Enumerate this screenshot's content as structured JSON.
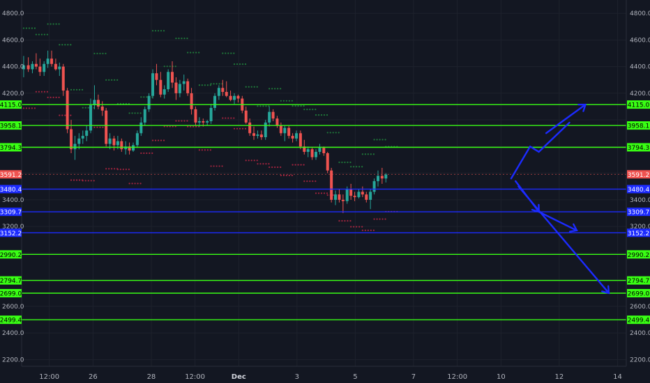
{
  "chart_data": {
    "type": "candlestick",
    "ylim": [
      2150,
      4900
    ],
    "y_ticks": [
      2200,
      2400,
      2600,
      2800,
      3000,
      3200,
      3400,
      3600,
      3800,
      4000,
      4200,
      4400,
      4600,
      4800
    ],
    "y_tick_labels": [
      "2200.0",
      "2400.0",
      "2600.0",
      "2800.0",
      "3000.0",
      "3200.0",
      "3400.0",
      "3600.0",
      "3800.0",
      "4000.0",
      "4200.0",
      "4400.0",
      "4600.0",
      "4800.0"
    ],
    "x_ticks": [
      {
        "label": "12:00",
        "x": 24.5
      },
      {
        "label": "26",
        "x": 26
      },
      {
        "label": "28",
        "x": 28
      },
      {
        "label": "12:00",
        "x": 29.5
      },
      {
        "label": "Dec",
        "x": 31,
        "bold": true
      },
      {
        "label": "3",
        "x": 33
      },
      {
        "label": "5",
        "x": 35
      },
      {
        "label": "7",
        "x": 37
      },
      {
        "label": "12:00",
        "x": 38.5
      },
      {
        "label": "10",
        "x": 40
      },
      {
        "label": "12",
        "x": 42
      },
      {
        "label": "14",
        "x": 44
      }
    ],
    "xlim": [
      23.55,
      44.3
    ],
    "last_price": {
      "value": 3591.2,
      "label": "3591.2",
      "color": "#ef5350"
    },
    "levels": [
      {
        "value": 4115.0,
        "label": "4115.0",
        "color": "#39ff14"
      },
      {
        "value": 3958.1,
        "label": "3958.1",
        "color": "#39ff14"
      },
      {
        "value": 3794.3,
        "label": "3794.3",
        "color": "#39ff14"
      },
      {
        "value": 3480.4,
        "label": "3480.4",
        "color": "#1c2bff"
      },
      {
        "value": 3309.7,
        "label": "3309.7",
        "color": "#1c2bff"
      },
      {
        "value": 3152.2,
        "label": "3152.2",
        "color": "#1c2bff"
      },
      {
        "value": 2990.2,
        "label": "2990.2",
        "color": "#39ff14"
      },
      {
        "value": 2794.7,
        "label": "2794.7",
        "color": "#39ff14"
      },
      {
        "value": 2699.0,
        "label": "2699.0",
        "color": "#39ff14"
      },
      {
        "value": 2499.4,
        "label": "2499.4",
        "color": "#39ff14"
      }
    ],
    "candles": [
      [
        23.62,
        4380,
        4480,
        4320,
        4410
      ],
      [
        23.78,
        4410,
        4470,
        4360,
        4380
      ],
      [
        23.92,
        4380,
        4440,
        4350,
        4420
      ],
      [
        24.05,
        4420,
        4500,
        4380,
        4400
      ],
      [
        24.18,
        4400,
        4460,
        4330,
        4360
      ],
      [
        24.32,
        4360,
        4440,
        4330,
        4420
      ],
      [
        24.45,
        4420,
        4520,
        4390,
        4460
      ],
      [
        24.58,
        4460,
        4520,
        4400,
        4420
      ],
      [
        24.72,
        4420,
        4460,
        4370,
        4380
      ],
      [
        24.85,
        4380,
        4430,
        4330,
        4400
      ],
      [
        24.98,
        4400,
        4420,
        4180,
        4220
      ],
      [
        25.12,
        4220,
        4240,
        3900,
        3930
      ],
      [
        25.25,
        3930,
        4000,
        3750,
        3780
      ],
      [
        25.38,
        3780,
        3880,
        3700,
        3820
      ],
      [
        25.52,
        3820,
        3900,
        3780,
        3860
      ],
      [
        25.65,
        3860,
        3920,
        3820,
        3880
      ],
      [
        25.78,
        3880,
        3960,
        3840,
        3920
      ],
      [
        25.92,
        3920,
        4160,
        3900,
        4110
      ],
      [
        26.05,
        4110,
        4260,
        4080,
        4150
      ],
      [
        26.18,
        4150,
        4190,
        4080,
        4100
      ],
      [
        26.32,
        4100,
        4140,
        4030,
        4070
      ],
      [
        26.45,
        4070,
        4090,
        3800,
        3820
      ],
      [
        26.58,
        3820,
        3900,
        3780,
        3860
      ],
      [
        26.72,
        3860,
        3880,
        3770,
        3810
      ],
      [
        26.85,
        3810,
        3880,
        3780,
        3840
      ],
      [
        26.98,
        3840,
        3860,
        3760,
        3780
      ],
      [
        27.12,
        3780,
        3840,
        3740,
        3800
      ],
      [
        27.25,
        3800,
        3830,
        3740,
        3770
      ],
      [
        27.38,
        3770,
        3830,
        3760,
        3810
      ],
      [
        27.52,
        3810,
        3920,
        3790,
        3900
      ],
      [
        27.65,
        3900,
        4020,
        3880,
        3980
      ],
      [
        27.78,
        3980,
        4100,
        3960,
        4080
      ],
      [
        27.92,
        4080,
        4200,
        4060,
        4180
      ],
      [
        28.05,
        4180,
        4380,
        4160,
        4350
      ],
      [
        28.18,
        4350,
        4420,
        4260,
        4300
      ],
      [
        28.32,
        4300,
        4360,
        4170,
        4190
      ],
      [
        28.45,
        4190,
        4260,
        4160,
        4230
      ],
      [
        28.58,
        4230,
        4380,
        4210,
        4360
      ],
      [
        28.72,
        4360,
        4440,
        4240,
        4280
      ],
      [
        28.85,
        4280,
        4320,
        4150,
        4200
      ],
      [
        28.98,
        4200,
        4300,
        4170,
        4270
      ],
      [
        29.12,
        4270,
        4340,
        4220,
        4290
      ],
      [
        29.25,
        4290,
        4310,
        4180,
        4200
      ],
      [
        29.38,
        4200,
        4240,
        4040,
        4080
      ],
      [
        29.52,
        4080,
        4100,
        3960,
        3980
      ],
      [
        29.65,
        3980,
        4020,
        3950,
        3990
      ],
      [
        29.78,
        3990,
        4010,
        3950,
        3980
      ],
      [
        29.92,
        3980,
        4000,
        3960,
        3990
      ],
      [
        30.05,
        3990,
        4120,
        3970,
        4090
      ],
      [
        30.18,
        4090,
        4200,
        4070,
        4180
      ],
      [
        30.32,
        4180,
        4260,
        4150,
        4240
      ],
      [
        30.45,
        4240,
        4300,
        4180,
        4210
      ],
      [
        30.58,
        4210,
        4290,
        4170,
        4180
      ],
      [
        30.72,
        4180,
        4220,
        4140,
        4150
      ],
      [
        30.85,
        4150,
        4200,
        4120,
        4180
      ],
      [
        30.98,
        4180,
        4190,
        4130,
        4160
      ],
      [
        31.12,
        4160,
        4180,
        4050,
        4070
      ],
      [
        31.25,
        4070,
        4100,
        3970,
        3980
      ],
      [
        31.38,
        3980,
        4010,
        3880,
        3900
      ],
      [
        31.52,
        3900,
        3950,
        3850,
        3880
      ],
      [
        31.65,
        3880,
        3920,
        3860,
        3890
      ],
      [
        31.78,
        3890,
        3920,
        3850,
        3870
      ],
      [
        31.92,
        3870,
        4000,
        3850,
        3980
      ],
      [
        32.05,
        3980,
        4100,
        3950,
        4060
      ],
      [
        32.18,
        4060,
        4080,
        3990,
        4010
      ],
      [
        32.32,
        4010,
        4030,
        3940,
        3960
      ],
      [
        32.45,
        3960,
        3980,
        3880,
        3900
      ],
      [
        32.58,
        3900,
        3960,
        3840,
        3940
      ],
      [
        32.72,
        3940,
        3960,
        3860,
        3880
      ],
      [
        32.85,
        3880,
        3900,
        3830,
        3860
      ],
      [
        32.98,
        3860,
        3920,
        3840,
        3900
      ],
      [
        33.12,
        3900,
        3920,
        3780,
        3800
      ],
      [
        33.25,
        3800,
        3850,
        3740,
        3760
      ],
      [
        33.38,
        3760,
        3800,
        3720,
        3780
      ],
      [
        33.52,
        3780,
        3790,
        3700,
        3720
      ],
      [
        33.65,
        3720,
        3780,
        3700,
        3760
      ],
      [
        33.78,
        3760,
        3820,
        3740,
        3790
      ],
      [
        33.92,
        3790,
        3800,
        3730,
        3750
      ],
      [
        34.05,
        3750,
        3760,
        3600,
        3620
      ],
      [
        34.18,
        3620,
        3640,
        3380,
        3400
      ],
      [
        34.32,
        3400,
        3470,
        3360,
        3440
      ],
      [
        34.45,
        3440,
        3480,
        3380,
        3400
      ],
      [
        34.58,
        3400,
        3440,
        3300,
        3390
      ],
      [
        34.72,
        3390,
        3500,
        3370,
        3480
      ],
      [
        34.85,
        3480,
        3520,
        3400,
        3430
      ],
      [
        34.98,
        3430,
        3460,
        3390,
        3420
      ],
      [
        35.12,
        3420,
        3480,
        3410,
        3460
      ],
      [
        35.25,
        3460,
        3500,
        3420,
        3440
      ],
      [
        35.38,
        3440,
        3460,
        3380,
        3400
      ],
      [
        35.52,
        3400,
        3480,
        3330,
        3460
      ],
      [
        35.65,
        3460,
        3560,
        3440,
        3540
      ],
      [
        35.78,
        3540,
        3620,
        3500,
        3580
      ],
      [
        35.92,
        3580,
        3640,
        3520,
        3560
      ],
      [
        36.05,
        3560,
        3600,
        3530,
        3590
      ]
    ]
  }
}
